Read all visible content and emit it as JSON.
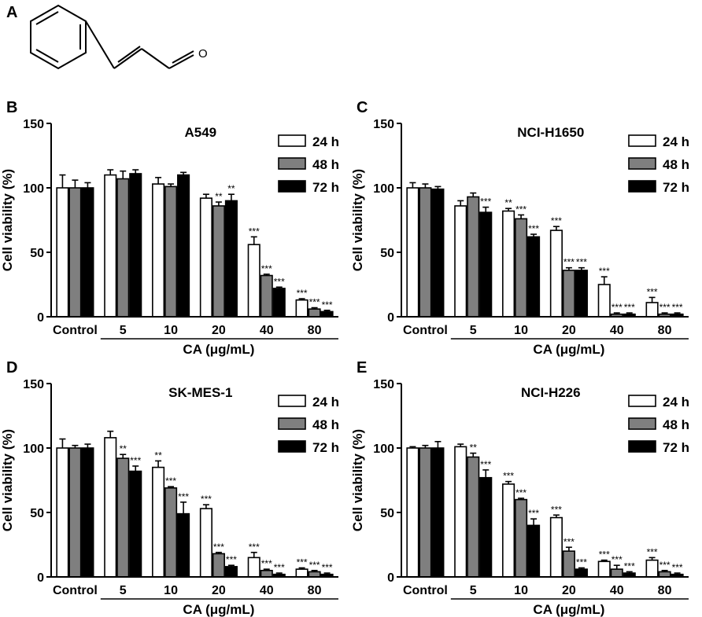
{
  "panel_labels": {
    "A": "A",
    "B": "B",
    "C": "C",
    "D": "D",
    "E": "E"
  },
  "molecule": {
    "oxygen_label": "O"
  },
  "chart_data": [
    {
      "type": "bar",
      "panel": "B",
      "title": "A549",
      "ylabel": "Cell viability (%)",
      "xlabel": "CA (μg/mL)",
      "ylim": [
        0,
        150
      ],
      "yticks": [
        "0",
        "50",
        "100",
        "150"
      ],
      "categories": [
        "Control",
        "5",
        "10",
        "20",
        "40",
        "80"
      ],
      "series": [
        {
          "name": "24 h",
          "values": [
            100,
            110,
            103,
            92,
            56,
            13
          ],
          "errors": [
            10,
            4,
            5,
            3,
            6,
            1
          ],
          "stars": [
            "",
            "",
            "",
            "",
            "***",
            "***"
          ]
        },
        {
          "name": "48 h",
          "values": [
            100,
            107,
            101,
            86,
            32,
            6
          ],
          "errors": [
            6,
            6,
            2,
            3,
            1,
            1
          ],
          "stars": [
            "",
            "",
            "",
            "**",
            "***",
            "***"
          ]
        },
        {
          "name": "72 h",
          "values": [
            100,
            111,
            110,
            90,
            22,
            4
          ],
          "errors": [
            4,
            3,
            2,
            5,
            1,
            1
          ],
          "stars": [
            "",
            "",
            "",
            "**",
            "***",
            "***"
          ]
        }
      ]
    },
    {
      "type": "bar",
      "panel": "C",
      "title": "NCI-H1650",
      "ylabel": "Cell viability (%)",
      "xlabel": "CA (μg/mL)",
      "ylim": [
        0,
        150
      ],
      "yticks": [
        "0",
        "50",
        "100",
        "150"
      ],
      "categories": [
        "Control",
        "5",
        "10",
        "20",
        "40",
        "80"
      ],
      "series": [
        {
          "name": "24 h",
          "values": [
            100,
            86,
            82,
            67,
            25,
            11
          ],
          "errors": [
            4,
            4,
            2,
            3,
            6,
            4
          ],
          "stars": [
            "",
            "",
            "**",
            "***",
            "***",
            "***"
          ]
        },
        {
          "name": "48 h",
          "values": [
            100,
            93,
            76,
            36,
            2,
            2
          ],
          "errors": [
            3,
            3,
            3,
            2,
            1,
            1
          ],
          "stars": [
            "",
            "",
            "***",
            "***",
            "***",
            "***"
          ]
        },
        {
          "name": "72 h",
          "values": [
            99,
            81,
            62,
            36,
            2,
            2
          ],
          "errors": [
            2,
            4,
            2,
            2,
            1,
            1
          ],
          "stars": [
            "",
            "***",
            "***",
            "***",
            "***",
            "***"
          ]
        }
      ]
    },
    {
      "type": "bar",
      "panel": "D",
      "title": "SK-MES-1",
      "ylabel": "Cell viability (%)",
      "xlabel": "CA (μg/mL)",
      "ylim": [
        0,
        150
      ],
      "yticks": [
        "0",
        "50",
        "100",
        "150"
      ],
      "categories": [
        "Control",
        "5",
        "10",
        "20",
        "40",
        "80"
      ],
      "series": [
        {
          "name": "24 h",
          "values": [
            100,
            108,
            85,
            53,
            15,
            6
          ],
          "errors": [
            7,
            5,
            5,
            3,
            4,
            1
          ],
          "stars": [
            "",
            "",
            "**",
            "***",
            "***",
            "***"
          ]
        },
        {
          "name": "48 h",
          "values": [
            100,
            92,
            69,
            18,
            5,
            4
          ],
          "errors": [
            2,
            3,
            1,
            1,
            1,
            1
          ],
          "stars": [
            "",
            "**",
            "***",
            "***",
            "***",
            "***"
          ]
        },
        {
          "name": "72 h",
          "values": [
            100,
            82,
            49,
            8,
            2,
            2
          ],
          "errors": [
            3,
            4,
            9,
            1,
            1,
            1
          ],
          "stars": [
            "",
            "***",
            "***",
            "***",
            "***",
            "***"
          ]
        }
      ]
    },
    {
      "type": "bar",
      "panel": "E",
      "title": "NCI-H226",
      "ylabel": "Cell viability (%)",
      "xlabel": "CA (μg/mL)",
      "ylim": [
        0,
        150
      ],
      "yticks": [
        "0",
        "50",
        "100",
        "150"
      ],
      "categories": [
        "Control",
        "5",
        "10",
        "20",
        "40",
        "80"
      ],
      "series": [
        {
          "name": "24 h",
          "values": [
            100,
            101,
            72,
            46,
            12,
            13
          ],
          "errors": [
            1,
            2,
            2,
            2,
            1,
            2
          ],
          "stars": [
            "",
            "",
            "***",
            "***",
            "***",
            "***"
          ]
        },
        {
          "name": "48 h",
          "values": [
            100,
            93,
            60,
            20,
            6,
            4
          ],
          "errors": [
            2,
            3,
            1,
            3,
            3,
            1
          ],
          "stars": [
            "",
            "**",
            "***",
            "***",
            "***",
            "***"
          ]
        },
        {
          "name": "72 h",
          "values": [
            100,
            77,
            40,
            6,
            3,
            2
          ],
          "errors": [
            5,
            6,
            5,
            1,
            1,
            1
          ],
          "stars": [
            "",
            "***",
            "***",
            "***",
            "***",
            "***"
          ]
        }
      ]
    }
  ],
  "series_colors": {
    "24 h": "#ffffff",
    "48 h": "#7f7f7f",
    "72 h": "#000000"
  }
}
